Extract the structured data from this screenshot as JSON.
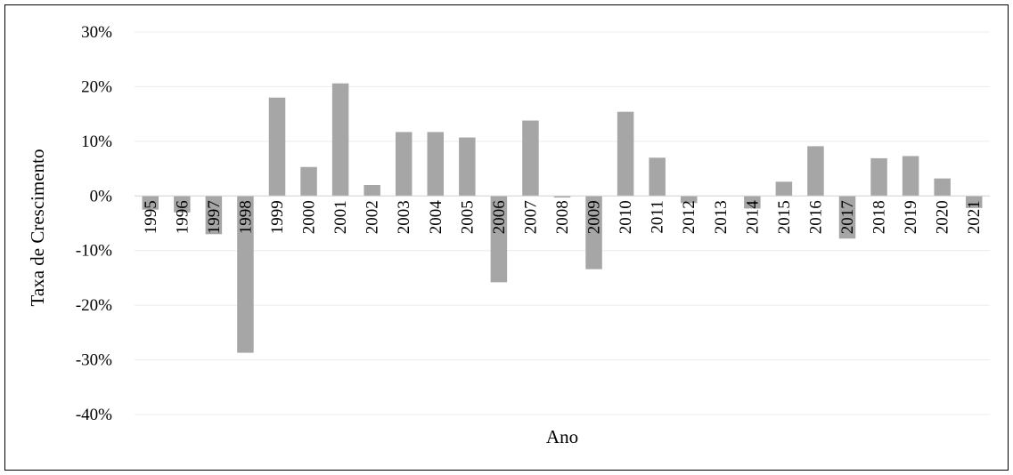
{
  "chart_data": {
    "type": "bar",
    "categories": [
      "1995",
      "1996",
      "1997",
      "1998",
      "1999",
      "2000",
      "2001",
      "2002",
      "2003",
      "2004",
      "2005",
      "2006",
      "2007",
      "2008",
      "2009",
      "2010",
      "2011",
      "2012",
      "2013",
      "2014",
      "2015",
      "2016",
      "2017",
      "2018",
      "2019",
      "2020",
      "2021"
    ],
    "values": [
      -2.5,
      -3.0,
      -7.0,
      -28.7,
      18.0,
      5.3,
      20.6,
      2.0,
      11.7,
      11.7,
      10.7,
      -15.8,
      13.8,
      -0.3,
      -13.4,
      15.4,
      7.0,
      -1.3,
      0.0,
      -2.3,
      2.6,
      9.1,
      -7.8,
      6.9,
      7.3,
      3.2,
      -2.2
    ],
    "value_unit": "%",
    "title": "",
    "xlabel": "Ano",
    "ylabel": "Taxa de Crescimento",
    "ylim": [
      -40,
      30
    ],
    "yticks": [
      -40,
      -30,
      -20,
      -10,
      0,
      10,
      20,
      30
    ],
    "ytick_labels": [
      "-40%",
      "-30%",
      "-20%",
      "-10%",
      "0%",
      "10%",
      "20%",
      "30%"
    ],
    "grid": true,
    "legend": "none",
    "colors": {
      "bar": "#a6a6a6",
      "grid": "#ececec",
      "axis": "#d0d0d0",
      "text": "#000000"
    }
  }
}
